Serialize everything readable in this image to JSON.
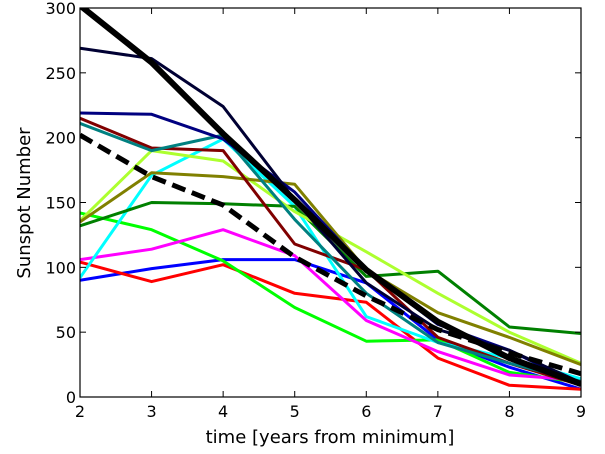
{
  "chart_data": {
    "type": "line",
    "title": "",
    "xlabel": "time [years from minimum]",
    "ylabel": "Sunspot Number",
    "xlim": [
      2,
      9
    ],
    "ylim": [
      0,
      300
    ],
    "xticks": [
      2,
      3,
      4,
      5,
      6,
      7,
      8,
      9
    ],
    "yticks": [
      0,
      50,
      100,
      150,
      200,
      250,
      300
    ],
    "grid": false,
    "legend": "none",
    "series": [
      {
        "color": "#0000ff",
        "width": 3,
        "style": "solid",
        "points": [
          [
            2,
            90
          ],
          [
            3,
            99
          ],
          [
            4,
            106
          ],
          [
            5,
            106
          ],
          [
            6,
            88
          ],
          [
            7,
            44
          ],
          [
            8,
            23
          ],
          [
            9,
            6
          ]
        ]
      },
      {
        "color": "#ff0000",
        "width": 3,
        "style": "solid",
        "points": [
          [
            2,
            104
          ],
          [
            3,
            89
          ],
          [
            4,
            102
          ],
          [
            5,
            80
          ],
          [
            6,
            73
          ],
          [
            7,
            30
          ],
          [
            8,
            9
          ],
          [
            9,
            6
          ]
        ]
      },
      {
        "color": "#00ff00",
        "width": 3,
        "style": "solid",
        "points": [
          [
            2,
            142
          ],
          [
            3,
            129
          ],
          [
            4,
            105
          ],
          [
            5,
            69
          ],
          [
            6,
            43
          ],
          [
            7,
            44
          ],
          [
            8,
            19
          ],
          [
            9,
            11
          ]
        ]
      },
      {
        "color": "#ff00ff",
        "width": 3,
        "style": "solid",
        "points": [
          [
            2,
            106
          ],
          [
            3,
            114
          ],
          [
            4,
            129
          ],
          [
            5,
            109
          ],
          [
            6,
            59
          ],
          [
            7,
            35
          ],
          [
            8,
            17
          ],
          [
            9,
            13
          ]
        ]
      },
      {
        "color": "#00ffff",
        "width": 3,
        "style": "solid",
        "points": [
          [
            2,
            92
          ],
          [
            3,
            171
          ],
          [
            4,
            199
          ],
          [
            5,
            147
          ],
          [
            6,
            62
          ],
          [
            7,
            42
          ],
          [
            8,
            30
          ],
          [
            9,
            14
          ]
        ]
      },
      {
        "color": "#008000",
        "width": 3,
        "style": "solid",
        "points": [
          [
            2,
            132
          ],
          [
            3,
            150
          ],
          [
            4,
            149
          ],
          [
            5,
            147
          ],
          [
            6,
            93
          ],
          [
            7,
            97
          ],
          [
            8,
            54
          ],
          [
            9,
            49
          ]
        ]
      },
      {
        "color": "#adff2f",
        "width": 3,
        "style": "solid",
        "points": [
          [
            2,
            136
          ],
          [
            3,
            190
          ],
          [
            4,
            182
          ],
          [
            5,
            143
          ],
          [
            6,
            112
          ],
          [
            7,
            80
          ],
          [
            8,
            50
          ],
          [
            9,
            26
          ]
        ]
      },
      {
        "color": "#808000",
        "width": 3,
        "style": "solid",
        "points": [
          [
            2,
            135
          ],
          [
            3,
            173
          ],
          [
            4,
            170
          ],
          [
            5,
            164
          ],
          [
            6,
            98
          ],
          [
            7,
            65
          ],
          [
            8,
            46
          ],
          [
            9,
            25
          ]
        ]
      },
      {
        "color": "#800000",
        "width": 3,
        "style": "solid",
        "points": [
          [
            2,
            215
          ],
          [
            3,
            192
          ],
          [
            4,
            190
          ],
          [
            5,
            118
          ],
          [
            6,
            98
          ],
          [
            7,
            46
          ],
          [
            8,
            26
          ],
          [
            9,
            9
          ]
        ]
      },
      {
        "color": "#008080",
        "width": 3,
        "style": "solid",
        "points": [
          [
            2,
            211
          ],
          [
            3,
            190
          ],
          [
            4,
            202
          ],
          [
            5,
            137
          ],
          [
            6,
            80
          ],
          [
            7,
            42
          ],
          [
            8,
            26
          ],
          [
            9,
            12
          ]
        ]
      },
      {
        "color": "#000080",
        "width": 3,
        "style": "solid",
        "points": [
          [
            2,
            219
          ],
          [
            3,
            218
          ],
          [
            4,
            199
          ],
          [
            5,
            158
          ],
          [
            6,
            98
          ],
          [
            7,
            56
          ],
          [
            8,
            36
          ],
          [
            9,
            9
          ]
        ]
      },
      {
        "color": "#000033",
        "width": 3,
        "style": "solid",
        "points": [
          [
            2,
            269
          ],
          [
            3,
            261
          ],
          [
            4,
            224
          ],
          [
            5,
            152
          ],
          [
            6,
            88
          ],
          [
            7,
            52
          ],
          [
            8,
            36
          ],
          [
            9,
            11
          ]
        ]
      },
      {
        "color": "#000000",
        "width": 6,
        "style": "solid",
        "points": [
          [
            2,
            302
          ],
          [
            3,
            258
          ],
          [
            4,
            203
          ],
          [
            5,
            152
          ],
          [
            6,
            98
          ],
          [
            7,
            58
          ],
          [
            8,
            30
          ],
          [
            9,
            10
          ]
        ]
      },
      {
        "color": "#000000",
        "width": 5,
        "style": "dashed",
        "points": [
          [
            2,
            202
          ],
          [
            3,
            170
          ],
          [
            4,
            148
          ],
          [
            5,
            108
          ],
          [
            6,
            78
          ],
          [
            7,
            52
          ],
          [
            8,
            34
          ],
          [
            9,
            18
          ]
        ]
      }
    ]
  }
}
